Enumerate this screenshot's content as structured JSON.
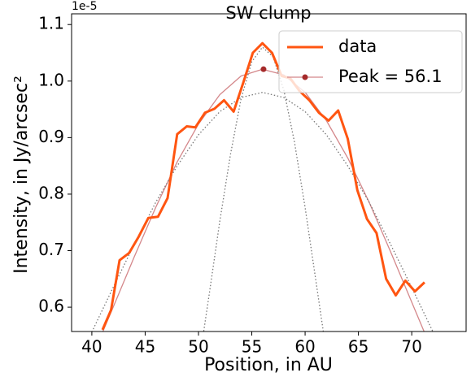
{
  "chart_data": {
    "type": "line",
    "title": "SW clump",
    "x_label": "Position, in AU",
    "y_label": "Intensity, in Jy/arcsec²",
    "offset_label": "1e-5",
    "xlim": [
      38.1,
      75.1
    ],
    "ylim": [
      0.557,
      1.119
    ],
    "xticks": [
      40,
      45,
      50,
      55,
      60,
      65,
      70
    ],
    "yticks": [
      0.6,
      0.7,
      0.8,
      0.9,
      {
        "value": 1.0,
        "label": "1.0"
      },
      1.1
    ],
    "legend": "upper right",
    "series": [
      {
        "name": "data",
        "color": "#ff5511",
        "x": [
          41.0,
          41.8,
          42.6,
          43.5,
          44.4,
          45.3,
          46.2,
          47.1,
          48.0,
          48.9,
          49.7,
          50.6,
          51.5,
          52.4,
          53.3,
          54.2,
          55.1,
          56.0,
          56.9,
          57.8,
          58.6,
          59.5,
          60.4,
          61.3,
          62.2,
          63.1,
          64.0,
          64.9,
          65.8,
          66.7,
          67.6,
          68.5,
          69.4,
          70.3,
          71.2
        ],
        "values": [
          0.56,
          0.595,
          0.683,
          0.696,
          0.725,
          0.758,
          0.76,
          0.793,
          0.906,
          0.92,
          0.918,
          0.944,
          0.951,
          0.966,
          0.946,
          0.997,
          1.05,
          1.067,
          1.05,
          1.009,
          1.005,
          0.982,
          0.966,
          0.944,
          0.93,
          0.948,
          0.898,
          0.807,
          0.756,
          0.731,
          0.65,
          0.621,
          0.647,
          0.628,
          0.644
        ]
      },
      {
        "name": "Peak = 56.1",
        "color": "#d4878a",
        "marker_color": "#a52a2a",
        "x": [
          56.1
        ],
        "values": [
          1.021
        ]
      }
    ],
    "fits": [
      {
        "color": "#d4878a",
        "style": "solid",
        "x": [
          40,
          42,
          44,
          46,
          48,
          50,
          52,
          54,
          56,
          58,
          60,
          62,
          64,
          66,
          68,
          70,
          72
        ],
        "values": [
          0.511,
          0.6,
          0.69,
          0.777,
          0.857,
          0.924,
          0.976,
          1.009,
          1.021,
          1.011,
          0.98,
          0.93,
          0.864,
          0.786,
          0.699,
          0.609,
          0.519
        ]
      },
      {
        "color": "#777777",
        "style": "dotted",
        "x": [
          40,
          42,
          44,
          46,
          48,
          50,
          52,
          54,
          56,
          58,
          60,
          62,
          64,
          66,
          68,
          70,
          72
        ],
        "values": [
          0.556,
          0.635,
          0.712,
          0.786,
          0.85,
          0.905,
          0.946,
          0.971,
          0.98,
          0.971,
          0.946,
          0.905,
          0.85,
          0.786,
          0.712,
          0.635,
          0.556
        ]
      },
      {
        "color": "#777777",
        "style": "dotted",
        "x": [
          50,
          51,
          52,
          53,
          54,
          55,
          56,
          57,
          58,
          59,
          60,
          61,
          62
        ],
        "values": [
          0.495,
          0.622,
          0.752,
          0.87,
          0.969,
          1.034,
          1.06,
          1.043,
          0.984,
          0.892,
          0.776,
          0.648,
          0.519
        ]
      }
    ]
  }
}
